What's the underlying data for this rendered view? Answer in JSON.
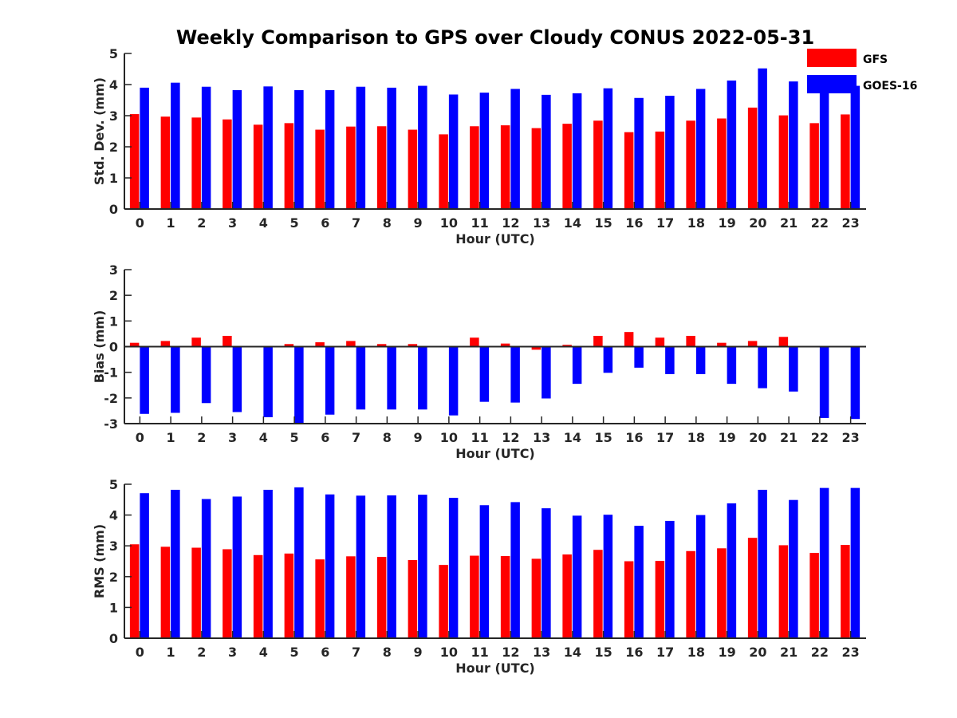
{
  "title": "Weekly Comparison to GPS over Cloudy CONUS 2022-05-31",
  "colors": {
    "GFS": "#ff0000",
    "GOES-16": "#0000ff"
  },
  "legend": {
    "entries": [
      "GFS",
      "GOES-16"
    ],
    "placement": "top-right"
  },
  "chart_data": [
    {
      "type": "bar",
      "xlabel": "Hour (UTC)",
      "ylabel": "Std. Dev. (mm)",
      "ylim": [
        0,
        5
      ],
      "yticks": [
        0,
        1,
        2,
        3,
        4,
        5
      ],
      "categories": [
        "0",
        "1",
        "2",
        "3",
        "4",
        "5",
        "6",
        "7",
        "8",
        "9",
        "10",
        "11",
        "12",
        "13",
        "14",
        "15",
        "16",
        "17",
        "18",
        "19",
        "20",
        "21",
        "22",
        "23"
      ],
      "series": [
        {
          "name": "GFS",
          "values": [
            3.05,
            2.97,
            2.94,
            2.88,
            2.71,
            2.76,
            2.55,
            2.65,
            2.66,
            2.55,
            2.4,
            2.66,
            2.69,
            2.6,
            2.74,
            2.84,
            2.47,
            2.49,
            2.84,
            2.91,
            3.26,
            3.01,
            2.76,
            3.04
          ]
        },
        {
          "name": "GOES-16",
          "values": [
            3.9,
            4.06,
            3.93,
            3.82,
            3.94,
            3.82,
            3.82,
            3.93,
            3.9,
            3.96,
            3.68,
            3.74,
            3.86,
            3.67,
            3.72,
            3.88,
            3.57,
            3.64,
            3.86,
            4.13,
            4.52,
            4.1,
            4.0,
            3.96
          ]
        }
      ]
    },
    {
      "type": "bar",
      "xlabel": "Hour (UTC)",
      "ylabel": "Bias (mm)",
      "ylim": [
        -3,
        3
      ],
      "yticks": [
        -3,
        -2,
        -1,
        0,
        1,
        2,
        3
      ],
      "categories": [
        "0",
        "1",
        "2",
        "3",
        "4",
        "5",
        "6",
        "7",
        "8",
        "9",
        "10",
        "11",
        "12",
        "13",
        "14",
        "15",
        "16",
        "17",
        "18",
        "19",
        "20",
        "21",
        "22",
        "23"
      ],
      "series": [
        {
          "name": "GFS",
          "values": [
            0.15,
            0.22,
            0.35,
            0.42,
            0.03,
            0.1,
            0.17,
            0.22,
            0.1,
            0.1,
            0.03,
            0.35,
            0.12,
            -0.12,
            0.07,
            0.42,
            0.57,
            0.35,
            0.42,
            0.15,
            0.22,
            0.38,
            -0.03,
            -0.03
          ]
        },
        {
          "name": "GOES-16",
          "values": [
            -2.62,
            -2.58,
            -2.2,
            -2.55,
            -2.75,
            -3.02,
            -2.65,
            -2.45,
            -2.45,
            -2.45,
            -2.68,
            -2.15,
            -2.18,
            -2.02,
            -1.45,
            -1.02,
            -0.82,
            -1.07,
            -1.07,
            -1.45,
            -1.62,
            -1.75,
            -2.78,
            -2.82
          ]
        }
      ]
    },
    {
      "type": "bar",
      "xlabel": "Hour (UTC)",
      "ylabel": "RMS (mm)",
      "ylim": [
        0,
        5
      ],
      "yticks": [
        0,
        1,
        2,
        3,
        4,
        5
      ],
      "categories": [
        "0",
        "1",
        "2",
        "3",
        "4",
        "5",
        "6",
        "7",
        "8",
        "9",
        "10",
        "11",
        "12",
        "13",
        "14",
        "15",
        "16",
        "17",
        "18",
        "19",
        "20",
        "21",
        "22",
        "23"
      ],
      "series": [
        {
          "name": "GFS",
          "values": [
            3.05,
            2.97,
            2.94,
            2.89,
            2.7,
            2.75,
            2.56,
            2.66,
            2.64,
            2.54,
            2.38,
            2.68,
            2.67,
            2.58,
            2.72,
            2.87,
            2.5,
            2.51,
            2.83,
            2.92,
            3.26,
            3.02,
            2.77,
            3.03
          ]
        },
        {
          "name": "GOES-16",
          "values": [
            4.71,
            4.82,
            4.52,
            4.6,
            4.82,
            4.9,
            4.67,
            4.63,
            4.64,
            4.66,
            4.56,
            4.32,
            4.42,
            4.22,
            3.98,
            4.01,
            3.65,
            3.81,
            4.0,
            4.38,
            4.82,
            4.49,
            4.88,
            4.88
          ]
        }
      ]
    }
  ]
}
